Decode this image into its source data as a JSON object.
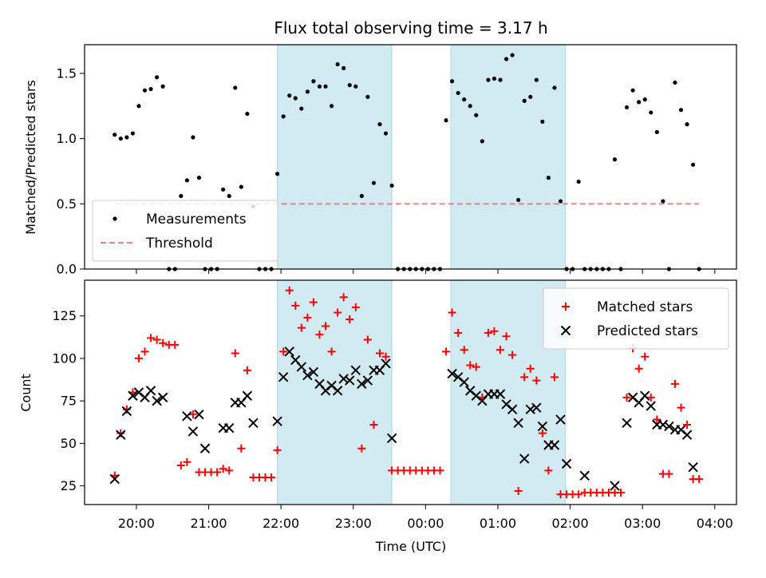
{
  "chart_data": {
    "title": "Flux total observing time = 3.17 h",
    "xlabel": "Time (UTC)",
    "x_ticks": [
      "20:00",
      "21:00",
      "22:00",
      "23:00",
      "00:00",
      "01:00",
      "02:00",
      "03:00",
      "04:00"
    ],
    "shaded_intervals": [
      [
        "21:57",
        "23:32"
      ],
      [
        "00:21",
        "01:56"
      ]
    ],
    "shade_color": "#add8e6",
    "panels": [
      {
        "type": "scatter",
        "ylabel": "Matched/Predicted stars",
        "ylim": [
          0,
          1.72
        ],
        "yticks": [
          "0.0",
          "0.5",
          "1.0",
          "1.5"
        ],
        "legend_position": "lower-left",
        "series": [
          {
            "name": "Measurements",
            "color": "#000000",
            "marker": "dot",
            "x": [
              "19:42",
              "19:47",
              "19:52",
              "19:57",
              "20:02",
              "20:07",
              "20:12",
              "20:17",
              "20:22",
              "20:27",
              "20:32",
              "20:37",
              "20:42",
              "20:47",
              "20:52",
              "20:57",
              "21:02",
              "21:07",
              "21:12",
              "21:17",
              "21:22",
              "21:27",
              "21:32",
              "21:37",
              "21:42",
              "21:47",
              "21:52",
              "21:57",
              "22:02",
              "22:07",
              "22:12",
              "22:17",
              "22:22",
              "22:27",
              "22:32",
              "22:37",
              "22:42",
              "22:47",
              "22:52",
              "22:57",
              "23:02",
              "23:07",
              "23:12",
              "23:17",
              "23:22",
              "23:27",
              "23:32",
              "23:37",
              "23:42",
              "23:47",
              "23:52",
              "23:57",
              "00:02",
              "00:07",
              "00:12",
              "00:17",
              "00:22",
              "00:27",
              "00:32",
              "00:37",
              "00:42",
              "00:47",
              "00:52",
              "00:57",
              "01:02",
              "01:07",
              "01:12",
              "01:17",
              "01:22",
              "01:27",
              "01:32",
              "01:37",
              "01:42",
              "01:47",
              "01:52",
              "01:57",
              "02:02",
              "02:07",
              "02:12",
              "02:17",
              "02:22",
              "02:27",
              "02:32",
              "02:37",
              "02:42",
              "02:47",
              "02:52",
              "02:57",
              "03:02",
              "03:07",
              "03:12",
              "03:17",
              "03:22",
              "03:27",
              "03:32",
              "03:37",
              "03:42",
              "03:47"
            ],
            "y": [
              1.03,
              1.0,
              1.01,
              1.04,
              1.25,
              1.37,
              1.38,
              1.47,
              1.4,
              0.0,
              0.0,
              0.56,
              0.68,
              1.01,
              0.7,
              0.0,
              0.0,
              0.0,
              0.61,
              0.56,
              1.39,
              0.63,
              1.19,
              0.48,
              0.0,
              0.0,
              0.0,
              0.73,
              1.17,
              1.33,
              1.31,
              1.23,
              1.36,
              1.44,
              1.4,
              1.4,
              1.25,
              1.57,
              1.54,
              1.41,
              1.4,
              0.56,
              1.32,
              0.66,
              1.11,
              1.04,
              0.64,
              0.0,
              0.0,
              0.0,
              0.0,
              0.0,
              0.0,
              0.0,
              0.0,
              1.14,
              1.44,
              1.35,
              1.3,
              1.25,
              1.18,
              0.98,
              1.45,
              1.46,
              1.45,
              1.61,
              1.64,
              0.53,
              1.29,
              1.32,
              1.45,
              1.13,
              0.7,
              1.39,
              0.52,
              0.0,
              0.0,
              0.67,
              0.0,
              0.0,
              0.0,
              0.0,
              0.0,
              0.84,
              0.0,
              1.24,
              1.37,
              1.28,
              1.3,
              1.2,
              1.05,
              0.52,
              0.0,
              1.43,
              1.22,
              1.11,
              0.8,
              0.0
            ]
          },
          {
            "name": "Threshold",
            "color": "#f08080",
            "line": "dashed",
            "x": [
              "19:42",
              "03:47"
            ],
            "y": [
              0.5,
              0.5
            ]
          }
        ]
      },
      {
        "type": "scatter",
        "ylabel": "Count",
        "ylim": [
          14,
          146
        ],
        "yticks": [
          "25",
          "50",
          "75",
          "100",
          "125"
        ],
        "legend_position": "top-right",
        "series": [
          {
            "name": "Matched stars",
            "color": "#ff0000",
            "marker": "plus",
            "x": [
              "19:42",
              "19:47",
              "19:52",
              "19:57",
              "20:02",
              "20:07",
              "20:12",
              "20:17",
              "20:22",
              "20:27",
              "20:32",
              "20:37",
              "20:42",
              "20:47",
              "20:52",
              "20:57",
              "21:02",
              "21:07",
              "21:12",
              "21:17",
              "21:22",
              "21:27",
              "21:32",
              "21:37",
              "21:42",
              "21:47",
              "21:52",
              "21:57",
              "22:02",
              "22:07",
              "22:12",
              "22:17",
              "22:22",
              "22:27",
              "22:32",
              "22:37",
              "22:42",
              "22:47",
              "22:52",
              "22:57",
              "23:02",
              "23:07",
              "23:12",
              "23:17",
              "23:22",
              "23:27",
              "23:32",
              "23:37",
              "23:42",
              "23:47",
              "23:52",
              "23:57",
              "00:02",
              "00:07",
              "00:12",
              "00:17",
              "00:22",
              "00:27",
              "00:32",
              "00:37",
              "00:42",
              "00:47",
              "00:52",
              "00:57",
              "01:02",
              "01:07",
              "01:12",
              "01:17",
              "01:22",
              "01:27",
              "01:32",
              "01:37",
              "01:42",
              "01:47",
              "01:52",
              "01:57",
              "02:02",
              "02:07",
              "02:12",
              "02:17",
              "02:22",
              "02:27",
              "02:32",
              "02:37",
              "02:42",
              "02:47",
              "02:52",
              "02:57",
              "03:02",
              "03:07",
              "03:12",
              "03:17",
              "03:22",
              "03:27",
              "03:32",
              "03:37",
              "03:42",
              "03:47"
            ],
            "y": [
              31,
              56,
              70,
              80,
              100,
              104,
              112,
              111,
              109,
              108,
              108,
              37,
              39,
              67,
              33,
              33,
              33,
              33,
              35,
              34,
              103,
              47,
              93,
              30,
              30,
              30,
              30,
              46,
              104,
              140,
              131,
              118,
              124,
              133,
              114,
              119,
              104,
              127,
              136,
              123,
              130,
              47,
              111,
              61,
              103,
              101,
              34,
              34,
              34,
              34,
              34,
              34,
              34,
              34,
              34,
              104,
              127,
              115,
              105,
              96,
              95,
              77,
              115,
              116,
              105,
              113,
              102,
              22,
              89,
              94,
              87,
              56,
              34,
              89,
              20,
              20,
              20,
              20,
              21,
              21,
              21,
              21,
              21,
              21,
              21,
              77,
              106,
              94,
              101,
              77,
              64,
              32,
              32,
              85,
              71,
              61,
              29,
              29
            ]
          },
          {
            "name": "Predicted stars",
            "color": "#000000",
            "marker": "x",
            "x": [
              "19:42",
              "19:47",
              "19:52",
              "19:57",
              "20:02",
              "20:07",
              "20:12",
              "20:17",
              "20:22",
              "20:42",
              "20:47",
              "20:52",
              "20:57",
              "21:12",
              "21:17",
              "21:22",
              "21:27",
              "21:32",
              "21:37",
              "21:57",
              "22:02",
              "22:07",
              "22:12",
              "22:17",
              "22:22",
              "22:27",
              "22:32",
              "22:37",
              "22:42",
              "22:47",
              "22:52",
              "22:57",
              "23:02",
              "23:07",
              "23:12",
              "23:17",
              "23:22",
              "23:27",
              "23:32",
              "00:22",
              "00:27",
              "00:32",
              "00:37",
              "00:42",
              "00:47",
              "00:52",
              "00:57",
              "01:02",
              "01:07",
              "01:12",
              "01:17",
              "01:22",
              "01:27",
              "01:32",
              "01:37",
              "01:42",
              "01:47",
              "01:52",
              "01:57",
              "02:12",
              "02:37",
              "02:47",
              "02:52",
              "02:57",
              "03:02",
              "03:07",
              "03:12",
              "03:17",
              "03:22",
              "03:27",
              "03:32",
              "03:37",
              "03:42"
            ],
            "y": [
              29,
              55,
              69,
              78,
              80,
              77,
              81,
              75,
              77,
              66,
              57,
              67,
              47,
              59,
              59,
              74,
              74,
              78,
              62,
              63,
              89,
              104,
              99,
              95,
              90,
              92,
              85,
              81,
              84,
              81,
              88,
              87,
              93,
              85,
              87,
              93,
              93,
              97,
              53,
              91,
              89,
              86,
              81,
              78,
              75,
              79,
              79,
              79,
              73,
              70,
              62,
              41,
              70,
              71,
              60,
              49,
              49,
              64,
              38,
              31,
              25,
              62,
              77,
              74,
              78,
              72,
              61,
              61,
              60,
              58,
              58,
              55,
              36
            ]
          }
        ]
      }
    ]
  }
}
